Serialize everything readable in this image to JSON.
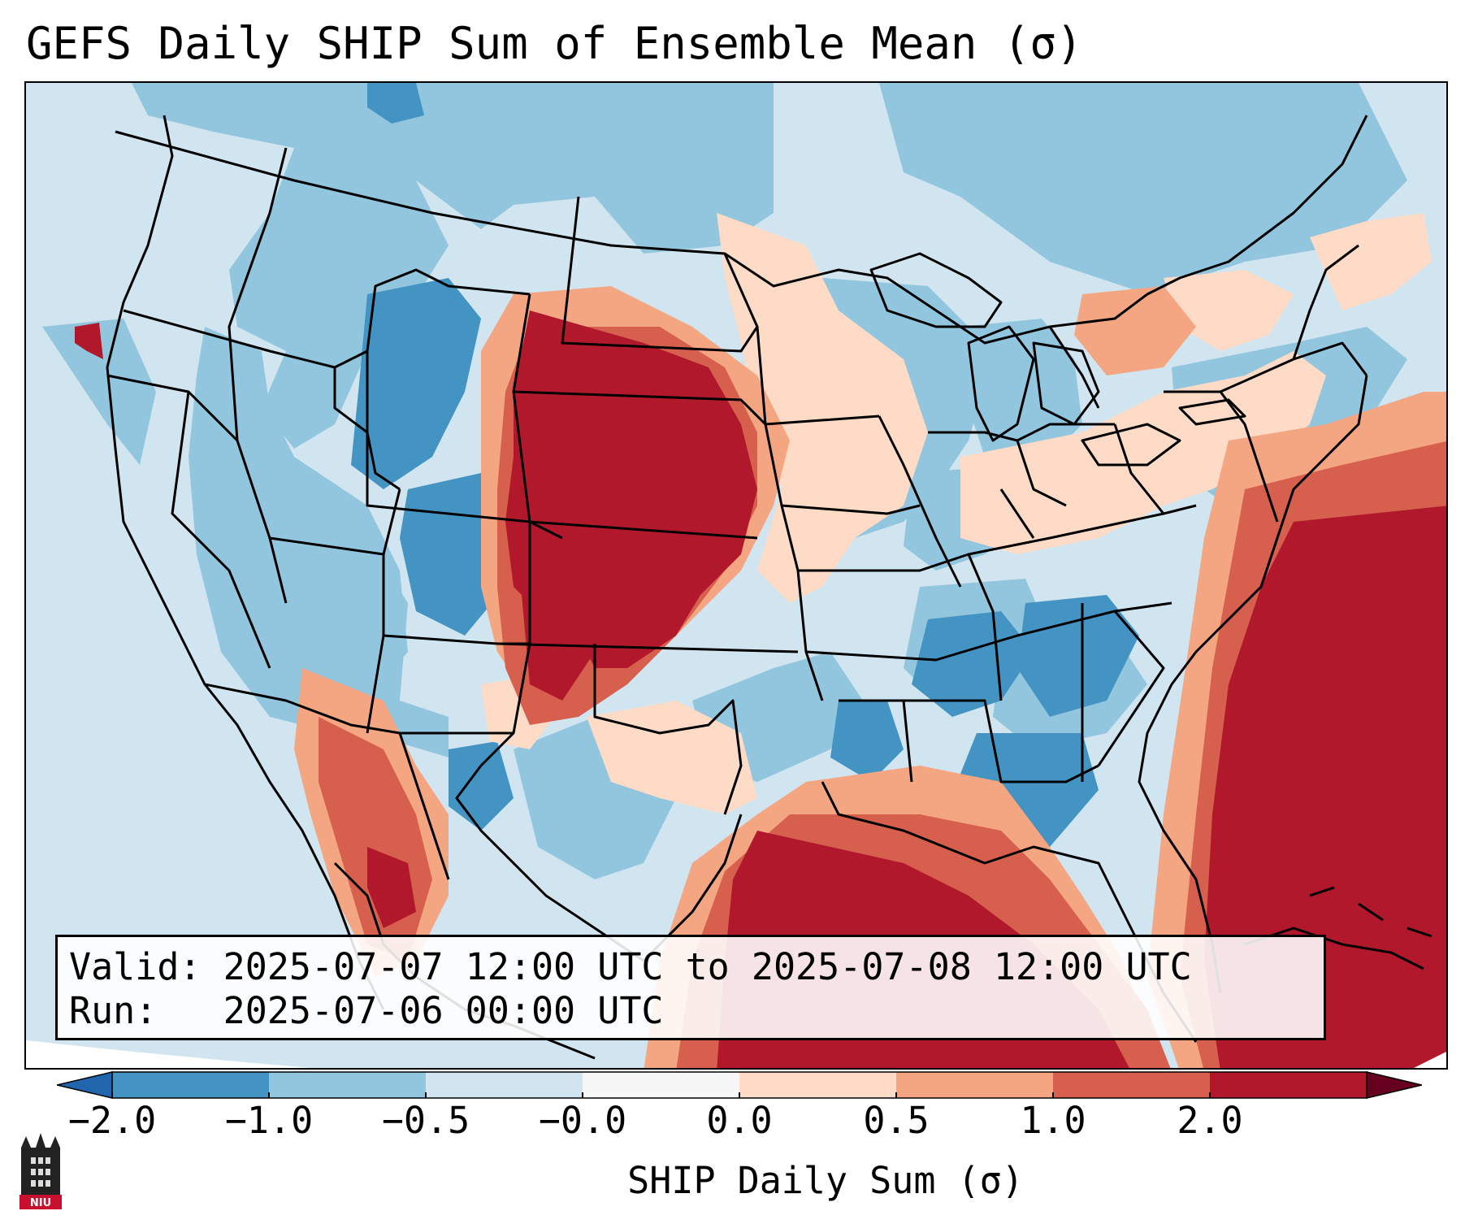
{
  "title": "GEFS Daily SHIP Sum of Ensemble Mean (σ)",
  "info": {
    "valid_label": "Valid:",
    "valid_value": "2025-07-07 12:00 UTC to 2025-07-08 12:00 UTC",
    "run_label": "Run:  ",
    "run_value": "2025-07-06 00:00 UTC"
  },
  "colorbar": {
    "label": "SHIP Daily Sum (σ)",
    "ticks": [
      "−2.0",
      "−1.0",
      "−0.5",
      "−0.0",
      "0.0",
      "0.5",
      "1.0",
      "2.0"
    ],
    "colors": [
      "#4393c3",
      "#92c5de",
      "#d1e5f0",
      "#f7f7f7",
      "#fddbc7",
      "#f4a582",
      "#d6604d",
      "#b2182b"
    ],
    "under_color": "#2166ac",
    "over_color": "#67001f"
  },
  "logo": {
    "name": "university-seal-icon",
    "text": "NIU"
  },
  "map": {
    "projection": "conus-lambert",
    "region": "North America / CONUS",
    "palette": {
      "b3": "#4393c3",
      "b2": "#92c5de",
      "b1": "#d1e5f0",
      "r1": "#fddbc7",
      "r2": "#f4a582",
      "r3": "#d6604d",
      "r4": "#b2182b"
    }
  }
}
